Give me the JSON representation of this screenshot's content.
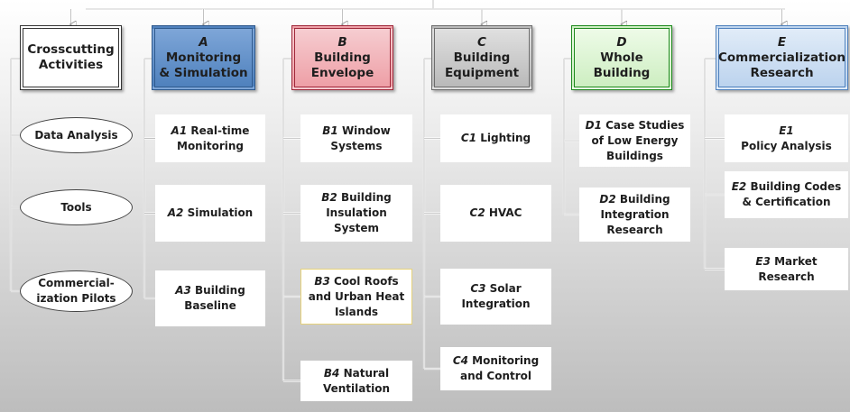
{
  "columns": [
    {
      "header": {
        "title": "Crosscutting Activities"
      },
      "items": [
        {
          "text": "Data Analysis"
        },
        {
          "text": "Tools"
        },
        {
          "text": "Commercial-ization Pilots"
        }
      ]
    },
    {
      "header": {
        "code": "A",
        "title": "Monitoring & Simulation"
      },
      "items": [
        {
          "code": "A1",
          "text": "Real-time Monitoring"
        },
        {
          "code": "A2",
          "text": "Simulation"
        },
        {
          "code": "A3",
          "text": "Building Baseline"
        }
      ]
    },
    {
      "header": {
        "code": "B",
        "title": "Building Envelope"
      },
      "items": [
        {
          "code": "B1",
          "text": "Window Systems"
        },
        {
          "code": "B2",
          "text": "Building Insulation System"
        },
        {
          "code": "B3",
          "text": "Cool Roofs and Urban Heat Islands"
        },
        {
          "code": "B4",
          "text": "Natural Ventilation"
        }
      ]
    },
    {
      "header": {
        "code": "C",
        "title": "Building Equipment"
      },
      "items": [
        {
          "code": "C1",
          "text": "Lighting"
        },
        {
          "code": "C2",
          "text": "HVAC"
        },
        {
          "code": "C3",
          "text": "Solar Integration"
        },
        {
          "code": "C4",
          "text": "Monitoring and Control"
        }
      ]
    },
    {
      "header": {
        "code": "D",
        "title": "Whole Building"
      },
      "items": [
        {
          "code": "D1",
          "text": "Case Studies of Low Energy Buildings"
        },
        {
          "code": "D2",
          "text": "Building Integration Research"
        }
      ]
    },
    {
      "header": {
        "code": "E",
        "title": "Commercialization Research"
      },
      "items": [
        {
          "code": "E1",
          "text": "Policy Analysis"
        },
        {
          "code": "E2",
          "text": "Building Codes & Certification"
        },
        {
          "code": "E3",
          "text": "Market Research"
        }
      ]
    }
  ]
}
